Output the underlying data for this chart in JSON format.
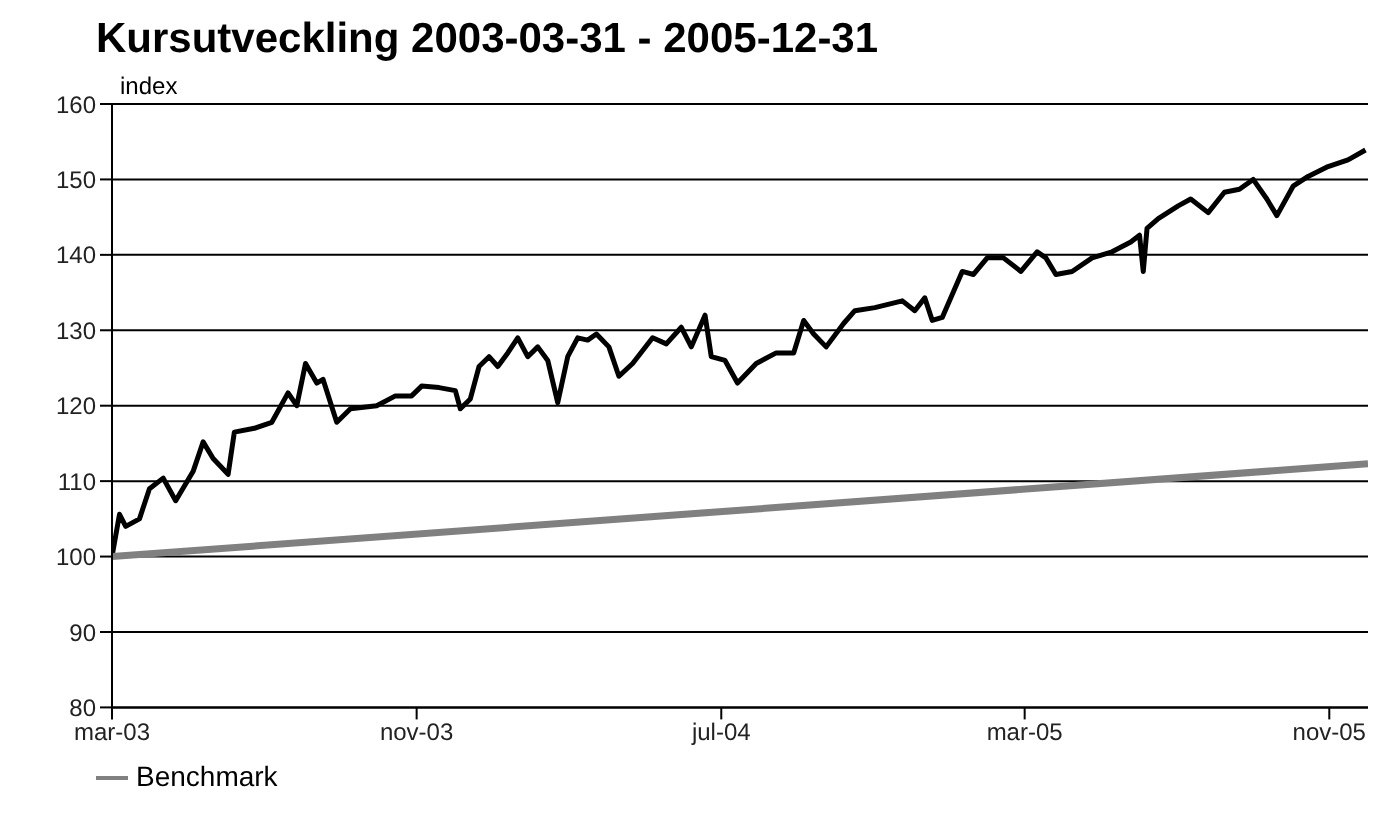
{
  "chart_data": {
    "type": "line",
    "title": "Kursutveckling 2003-03-31 - 2005-12-31",
    "ylabel": "index",
    "xlim": [
      "2003-03-31",
      "2005-12-31"
    ],
    "xticks": [
      {
        "value": "2003-03-31",
        "label": "mar-03"
      },
      {
        "value": "2003-11-30",
        "label": "nov-03"
      },
      {
        "value": "2004-07-31",
        "label": "jul-04"
      },
      {
        "value": "2005-03-31",
        "label": "mar-05"
      },
      {
        "value": "2005-11-30",
        "label": "nov-05"
      }
    ],
    "ylim": [
      80,
      160
    ],
    "yticks": [
      80,
      90,
      100,
      110,
      120,
      130,
      140,
      150,
      160
    ],
    "grid": "y",
    "legend": "bottom left",
    "marker": "none",
    "line_style": "solid",
    "series": [
      {
        "color": "#000000",
        "x": [
          "2003-03-31",
          "2003-04-06",
          "2003-04-11",
          "2003-04-22",
          "2003-04-30",
          "2003-05-11",
          "2003-05-21",
          "2003-06-04",
          "2003-06-12",
          "2003-06-20",
          "2003-07-02",
          "2003-07-07",
          "2003-07-23",
          "2003-08-06",
          "2003-08-19",
          "2003-08-26",
          "2003-09-02",
          "2003-09-11",
          "2003-09-16",
          "2003-09-27",
          "2003-10-08",
          "2003-10-29",
          "2003-11-13",
          "2003-11-26",
          "2003-12-04",
          "2003-12-18",
          "2003-12-31",
          "2004-01-04",
          "2004-01-12",
          "2004-01-19",
          "2004-01-27",
          "2004-02-03",
          "2004-02-11",
          "2004-02-19",
          "2004-02-27",
          "2004-03-06",
          "2004-03-14",
          "2004-03-22",
          "2004-03-30",
          "2004-04-07",
          "2004-04-15",
          "2004-04-22",
          "2004-05-02",
          "2004-05-10",
          "2004-05-21",
          "2004-06-06",
          "2004-06-17",
          "2004-06-29",
          "2004-07-07",
          "2004-07-18",
          "2004-07-23",
          "2004-08-03",
          "2004-08-13",
          "2004-08-28",
          "2004-09-13",
          "2004-09-27",
          "2004-10-05",
          "2004-10-13",
          "2004-10-23",
          "2004-11-06",
          "2004-11-15",
          "2004-12-01",
          "2004-12-23",
          "2005-01-02",
          "2005-01-10",
          "2005-01-16",
          "2005-01-24",
          "2005-02-09",
          "2005-02-18",
          "2005-03-01",
          "2005-03-14",
          "2005-03-28",
          "2005-04-10",
          "2005-04-17",
          "2005-04-25",
          "2005-05-08",
          "2005-05-24",
          "2005-06-09",
          "2005-06-24",
          "2005-07-01",
          "2005-07-04",
          "2005-07-07",
          "2005-07-16",
          "2005-08-01",
          "2005-08-11",
          "2005-08-25",
          "2005-09-07",
          "2005-09-19",
          "2005-09-30",
          "2005-10-11",
          "2005-10-19",
          "2005-11-01",
          "2005-11-13",
          "2005-11-29",
          "2005-12-15",
          "2005-12-29"
        ],
        "values": [
          100,
          105.6,
          104,
          105,
          109,
          110.4,
          107.4,
          111.3,
          115.2,
          113,
          110.9,
          116.5,
          117,
          117.8,
          121.7,
          120,
          125.6,
          123,
          123.5,
          117.8,
          119.6,
          120,
          121.3,
          121.3,
          122.6,
          122.4,
          122,
          119.6,
          120.9,
          125.2,
          126.5,
          125.2,
          127,
          129,
          126.5,
          127.8,
          126,
          120.4,
          126.5,
          129,
          128.7,
          129.5,
          127.8,
          123.9,
          125.6,
          129,
          128.2,
          130.4,
          127.8,
          132,
          126.5,
          126,
          123,
          125.6,
          127,
          127,
          131.3,
          129.5,
          127.8,
          130.9,
          132.6,
          133,
          133.9,
          132.6,
          134.3,
          131.3,
          131.7,
          137.8,
          137.4,
          139.6,
          139.6,
          137.8,
          140.4,
          139.6,
          137.4,
          137.8,
          139.6,
          140.4,
          141.7,
          142.6,
          137.8,
          143.5,
          144.8,
          146.5,
          147.4,
          145.6,
          148.3,
          148.7,
          150,
          147.4,
          145.2,
          149.1,
          150.4,
          151.7,
          152.6,
          153.9
        ]
      },
      {
        "name": "Benchmark",
        "color": "#808080",
        "x": [
          "2003-03-31",
          "2005-12-31"
        ],
        "values": [
          100,
          112.3
        ]
      }
    ]
  }
}
